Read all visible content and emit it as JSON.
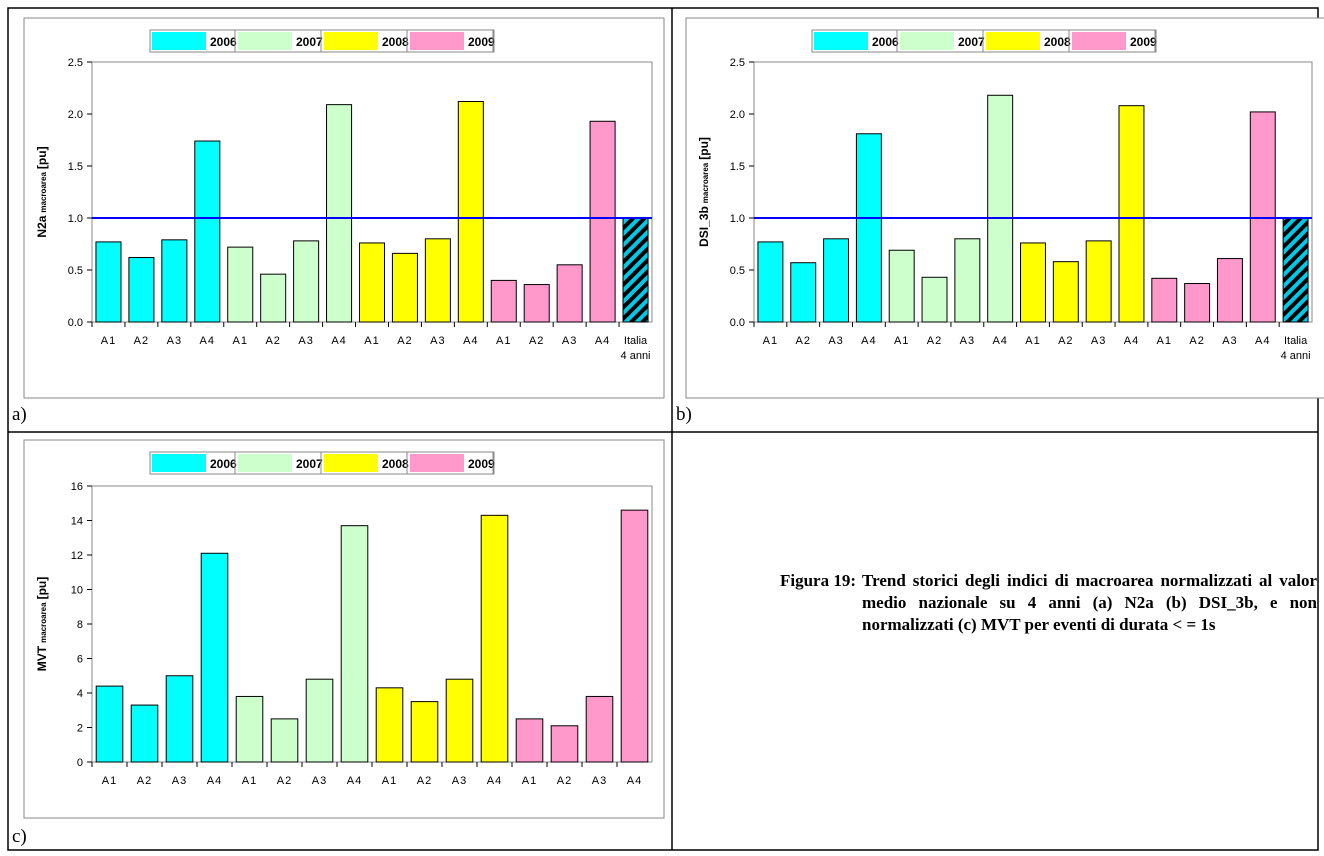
{
  "chart_data": [
    {
      "type": "bar",
      "panel_label": "a)",
      "ylabel": "N2a",
      "ylabel_sub": "macroarea",
      "ylabel_unit": "[pu]",
      "categories": [
        "A1",
        "A2",
        "A3",
        "A4",
        "A1",
        "A2",
        "A3",
        "A4",
        "A1",
        "A2",
        "A3",
        "A4",
        "A1",
        "A2",
        "A3",
        "A4",
        [
          "Italia",
          "4 anni"
        ]
      ],
      "series": [
        {
          "name": "2006",
          "color": "#00ffff",
          "values": [
            0.77,
            0.62,
            0.79,
            1.74,
            null,
            null,
            null,
            null,
            null,
            null,
            null,
            null,
            null,
            null,
            null,
            null,
            null
          ]
        },
        {
          "name": "2007",
          "color": "#ccffcc",
          "values": [
            null,
            null,
            null,
            null,
            0.72,
            0.46,
            0.78,
            2.09,
            null,
            null,
            null,
            null,
            null,
            null,
            null,
            null,
            null
          ]
        },
        {
          "name": "2008",
          "color": "#ffff00",
          "values": [
            null,
            null,
            null,
            null,
            null,
            null,
            null,
            null,
            0.76,
            0.66,
            0.8,
            2.12,
            null,
            null,
            null,
            null,
            null
          ]
        },
        {
          "name": "2009",
          "color": "#ff99cc",
          "values": [
            null,
            null,
            null,
            null,
            null,
            null,
            null,
            null,
            null,
            null,
            null,
            null,
            0.4,
            0.36,
            0.55,
            1.93,
            null
          ]
        }
      ],
      "italia_value": 1.0,
      "reference_line": 1.0,
      "reference_color": "#0000ff",
      "ylim": [
        0,
        2.5
      ],
      "yticks": [
        {
          "value": 0,
          "label": "0.0"
        },
        {
          "value": 0.5,
          "label": "0.5"
        },
        {
          "value": 1,
          "label": "1.0"
        },
        {
          "value": 1.5,
          "label": "1.5"
        },
        {
          "value": 2,
          "label": "2.0"
        },
        {
          "value": 2.5,
          "label": "2.5"
        }
      ]
    },
    {
      "type": "bar",
      "panel_label": "b)",
      "ylabel": "DSI_3b",
      "ylabel_sub": "macroarea",
      "ylabel_unit": "[pu]",
      "categories": [
        "A1",
        "A2",
        "A3",
        "A4",
        "A1",
        "A2",
        "A3",
        "A4",
        "A1",
        "A2",
        "A3",
        "A4",
        "A1",
        "A2",
        "A3",
        "A4",
        [
          "Italia",
          "4 anni"
        ]
      ],
      "series": [
        {
          "name": "2006",
          "color": "#00ffff",
          "values": [
            0.77,
            0.57,
            0.8,
            1.81,
            null,
            null,
            null,
            null,
            null,
            null,
            null,
            null,
            null,
            null,
            null,
            null,
            null
          ]
        },
        {
          "name": "2007",
          "color": "#ccffcc",
          "values": [
            null,
            null,
            null,
            null,
            0.69,
            0.43,
            0.8,
            2.18,
            null,
            null,
            null,
            null,
            null,
            null,
            null,
            null,
            null
          ]
        },
        {
          "name": "2008",
          "color": "#ffff00",
          "values": [
            null,
            null,
            null,
            null,
            null,
            null,
            null,
            null,
            0.76,
            0.58,
            0.78,
            2.08,
            null,
            null,
            null,
            null,
            null
          ]
        },
        {
          "name": "2009",
          "color": "#ff99cc",
          "values": [
            null,
            null,
            null,
            null,
            null,
            null,
            null,
            null,
            null,
            null,
            null,
            null,
            0.42,
            0.37,
            0.61,
            2.02,
            null
          ]
        }
      ],
      "italia_value": 1.0,
      "reference_line": 1.0,
      "reference_color": "#0000ff",
      "ylim": [
        0,
        2.5
      ],
      "yticks": [
        {
          "value": 0,
          "label": "0.0"
        },
        {
          "value": 0.5,
          "label": "0.5"
        },
        {
          "value": 1,
          "label": "1.0"
        },
        {
          "value": 1.5,
          "label": "1.5"
        },
        {
          "value": 2,
          "label": "2.0"
        },
        {
          "value": 2.5,
          "label": "2.5"
        }
      ]
    },
    {
      "type": "bar",
      "panel_label": "c)",
      "ylabel": "MVT",
      "ylabel_sub": "macroarea",
      "ylabel_unit": "[pu]",
      "categories": [
        "A1",
        "A2",
        "A3",
        "A4",
        "A1",
        "A2",
        "A3",
        "A4",
        "A1",
        "A2",
        "A3",
        "A4",
        "A1",
        "A2",
        "A3",
        "A4"
      ],
      "series": [
        {
          "name": "2006",
          "color": "#00ffff",
          "values": [
            4.4,
            3.3,
            5.0,
            12.1,
            null,
            null,
            null,
            null,
            null,
            null,
            null,
            null,
            null,
            null,
            null,
            null
          ]
        },
        {
          "name": "2007",
          "color": "#ccffcc",
          "values": [
            null,
            null,
            null,
            null,
            3.8,
            2.5,
            4.8,
            13.7,
            null,
            null,
            null,
            null,
            null,
            null,
            null,
            null
          ]
        },
        {
          "name": "2008",
          "color": "#ffff00",
          "values": [
            null,
            null,
            null,
            null,
            null,
            null,
            null,
            null,
            4.3,
            3.5,
            4.8,
            14.3,
            null,
            null,
            null,
            null
          ]
        },
        {
          "name": "2009",
          "color": "#ff99cc",
          "values": [
            null,
            null,
            null,
            null,
            null,
            null,
            null,
            null,
            null,
            null,
            null,
            null,
            2.5,
            2.1,
            3.8,
            14.6
          ]
        }
      ],
      "ylim": [
        0,
        16
      ],
      "yticks": [
        0,
        2,
        4,
        6,
        8,
        10,
        12,
        14,
        16
      ]
    }
  ],
  "caption": {
    "label": "Figura 19:",
    "text": "Trend storici degli indici di macroarea normalizzati al valor medio nazionale su 4 anni (a) N2a (b) DSI_3b, e non normalizzati (c) MVT per eventi di durata < = 1s"
  }
}
